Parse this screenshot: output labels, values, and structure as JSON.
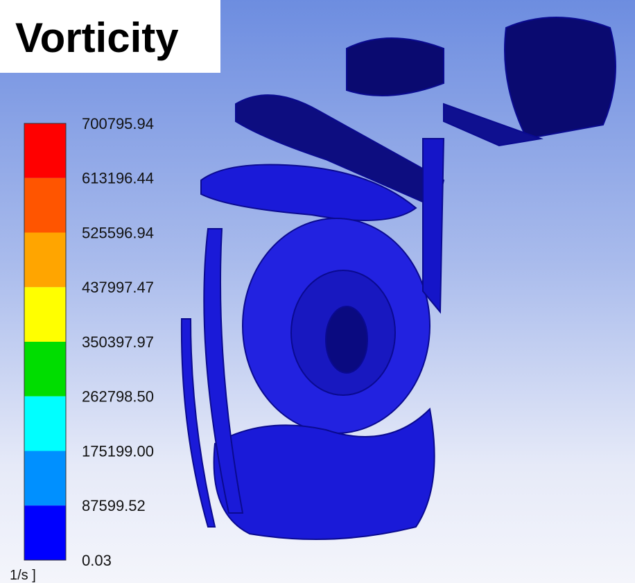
{
  "title": "Vorticity",
  "legend": {
    "unit": "1/s ]",
    "ticks": [
      "700795.94",
      "613196.44",
      "525596.94",
      "437997.47",
      "350397.97",
      "262798.50",
      "175199.00",
      "87599.52",
      "0.03"
    ],
    "colors": [
      "#ff0000",
      "#ff5500",
      "#ffa500",
      "#ffff00",
      "#00dd00",
      "#00ffff",
      "#0090ff",
      "#0000ff"
    ]
  }
}
